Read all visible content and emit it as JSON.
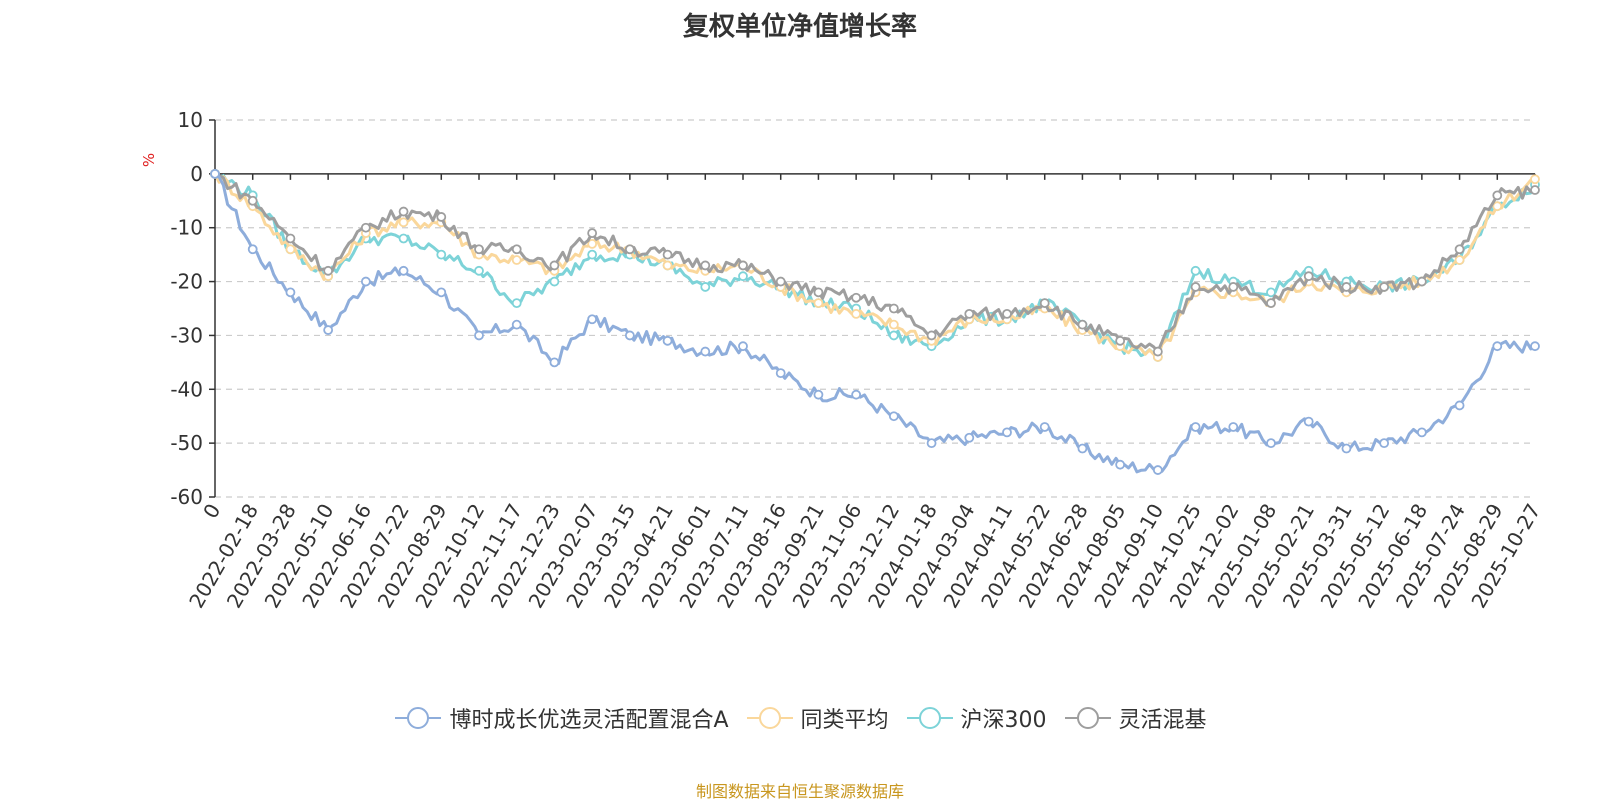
{
  "title": "复权单位净值增长率",
  "source_note": "制图数据来自恒生聚源数据库",
  "colors": {
    "fund": "#8eaddb",
    "peer": "#fad79b",
    "index": "#7dd3d8",
    "flex": "#9e9e9e",
    "unit": "#e02020",
    "source": "#c8961e"
  },
  "chart_data": {
    "type": "line",
    "title": "复权单位净值增长率",
    "ylabel": "%",
    "xlabel": "",
    "ylim": [
      -60,
      10
    ],
    "yticks": [
      10,
      0,
      -10,
      -20,
      -30,
      -40,
      -50,
      -60
    ],
    "grid": true,
    "legend_position": "bottom",
    "x": [
      "0",
      "2022-02-18",
      "2022-03-28",
      "2022-05-10",
      "2022-06-16",
      "2022-07-22",
      "2022-08-29",
      "2022-10-12",
      "2022-11-17",
      "2022-12-23",
      "2023-02-07",
      "2023-03-15",
      "2023-04-21",
      "2023-06-01",
      "2023-07-11",
      "2023-08-16",
      "2023-09-21",
      "2023-11-06",
      "2023-12-12",
      "2024-01-18",
      "2024-03-04",
      "2024-04-11",
      "2024-05-22",
      "2024-06-28",
      "2024-08-05",
      "2024-09-10",
      "2024-10-25",
      "2024-12-02",
      "2025-01-08",
      "2025-02-21",
      "2025-03-31",
      "2025-05-12",
      "2025-06-18",
      "2025-07-24",
      "2025-08-29",
      "2025-10-27"
    ],
    "series": [
      {
        "name": "博时成长优选灵活配置混合A",
        "color": "#8eaddb",
        "values": [
          0,
          -14,
          -22,
          -29,
          -20,
          -18,
          -22,
          -30,
          -28,
          -35,
          -27,
          -30,
          -31,
          -33,
          -32,
          -37,
          -41,
          -41,
          -45,
          -50,
          -49,
          -48,
          -47,
          -51,
          -54,
          -55,
          -47,
          -47,
          -50,
          -46,
          -51,
          -50,
          -48,
          -43,
          -32,
          -32
        ]
      },
      {
        "name": "同类平均",
        "color": "#fad79b",
        "values": [
          0,
          -6,
          -14,
          -19,
          -11,
          -9,
          -9,
          -15,
          -16,
          -18,
          -13,
          -14,
          -17,
          -18,
          -17,
          -21,
          -24,
          -26,
          -28,
          -31,
          -27,
          -27,
          -25,
          -29,
          -32,
          -34,
          -22,
          -22,
          -24,
          -20,
          -22,
          -21,
          -20,
          -16,
          -6,
          -1
        ]
      },
      {
        "name": "沪深300",
        "color": "#7dd3d8",
        "values": [
          0,
          -4,
          -14,
          -19,
          -12,
          -12,
          -15,
          -18,
          -24,
          -20,
          -15,
          -15,
          -17,
          -21,
          -19,
          -21,
          -24,
          -25,
          -30,
          -32,
          -27,
          -27,
          -24,
          -28,
          -32,
          -34,
          -18,
          -20,
          -22,
          -18,
          -20,
          -21,
          -20,
          -16,
          -6,
          -2
        ]
      },
      {
        "name": "灵活混基",
        "color": "#9e9e9e",
        "values": [
          0,
          -5,
          -12,
          -18,
          -10,
          -7,
          -8,
          -14,
          -14,
          -17,
          -11,
          -14,
          -15,
          -17,
          -17,
          -20,
          -22,
          -23,
          -25,
          -30,
          -26,
          -26,
          -24,
          -28,
          -31,
          -33,
          -21,
          -21,
          -24,
          -19,
          -21,
          -21,
          -20,
          -14,
          -4,
          -3
        ]
      }
    ]
  }
}
